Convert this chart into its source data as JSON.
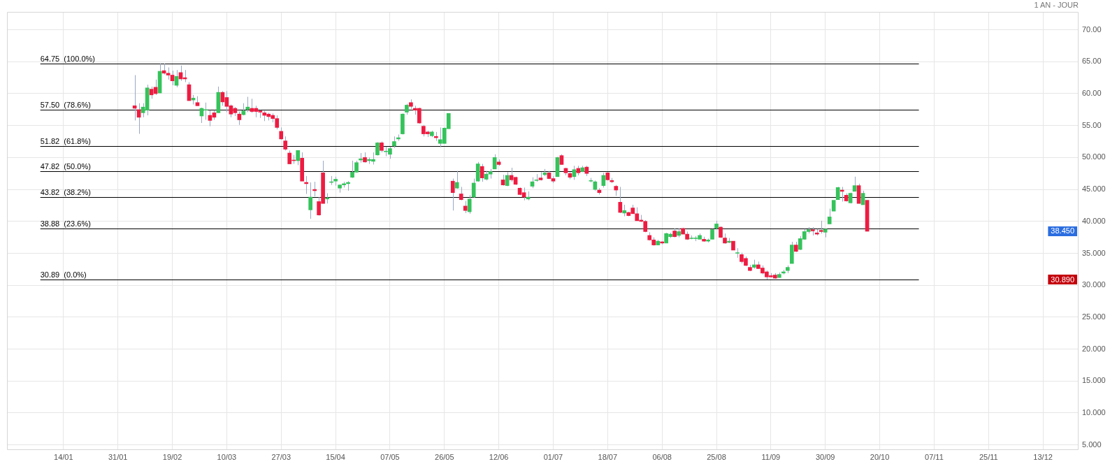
{
  "chart_data": {
    "type": "candlestick",
    "subtitle": "1 AN - JOUR",
    "categories": [
      null,
      null,
      null,
      null,
      null,
      null,
      null,
      null,
      null,
      null,
      null,
      null,
      null,
      "14/01",
      null,
      null,
      null,
      null,
      null,
      null,
      null,
      null,
      null,
      null,
      null,
      null,
      "31/01",
      null,
      null,
      null,
      null,
      null,
      null,
      null,
      null,
      null,
      null,
      null,
      null,
      "19/02",
      null,
      null,
      null,
      null,
      null,
      null,
      null,
      null,
      null,
      null,
      null,
      null,
      "10/03",
      null,
      null,
      null,
      null,
      null,
      null,
      null,
      null,
      null,
      null,
      null,
      null,
      "27/03",
      null,
      null,
      null,
      null,
      null,
      null,
      null,
      null,
      null,
      null,
      null,
      null,
      "15/04",
      null,
      null,
      null,
      null,
      null,
      null,
      null,
      null,
      null,
      null,
      null,
      null,
      "07/05",
      null,
      null,
      null,
      null,
      null,
      null,
      null,
      null,
      null,
      null,
      null,
      null,
      "26/05",
      null,
      null,
      null,
      null,
      null,
      null,
      null,
      null,
      null,
      null,
      null,
      null,
      "12/06",
      null,
      null,
      null,
      null,
      null,
      null,
      null,
      null,
      null,
      null,
      null,
      null,
      "01/07",
      null,
      null,
      null,
      null,
      null,
      null,
      null,
      null,
      null,
      null,
      null,
      null,
      "18/07",
      null,
      null,
      null,
      null,
      null,
      null,
      null,
      null,
      null,
      null,
      null,
      null,
      "06/08",
      null,
      null,
      null,
      null,
      null,
      null,
      null,
      null,
      null,
      null,
      null,
      null,
      "25/08",
      null,
      null,
      null,
      null,
      null,
      null,
      null,
      null,
      null,
      null,
      null,
      null,
      "11/09",
      null,
      null,
      null,
      null,
      null,
      null,
      null,
      null,
      null,
      null,
      null,
      null,
      "30/09",
      null,
      null,
      null,
      null,
      null,
      null,
      null,
      null,
      null,
      null,
      null,
      null,
      "20/10",
      null,
      null,
      null,
      null,
      null,
      null,
      null,
      null,
      null,
      null,
      null,
      null,
      "07/11",
      null,
      null,
      null,
      null,
      null,
      null,
      null,
      null,
      null,
      null,
      null,
      null,
      "25/11",
      null,
      null,
      null,
      null,
      null,
      null,
      null,
      null,
      null,
      null,
      null,
      null,
      "13/12",
      null,
      null,
      null,
      null,
      null,
      null,
      null,
      null
    ],
    "ohlc": [
      null,
      null,
      null,
      null,
      null,
      null,
      null,
      null,
      null,
      null,
      null,
      null,
      null,
      null,
      null,
      null,
      null,
      null,
      null,
      null,
      null,
      null,
      null,
      null,
      null,
      null,
      null,
      null,
      null,
      null,
      [
        58.1,
        62.9,
        55.8,
        57.7
      ],
      [
        57.5,
        58.5,
        53.7,
        56.3
      ],
      [
        57.0,
        58.5,
        56.3,
        57.9
      ],
      [
        57.4,
        61.4,
        56.6,
        60.9
      ],
      [
        60.7,
        61.1,
        59.2,
        59.8
      ],
      [
        61.0,
        62.2,
        59.8,
        60.0
      ],
      [
        60.1,
        64.75,
        60.1,
        63.5
      ],
      [
        63.6,
        64.7,
        63.0,
        63.2
      ],
      [
        63.2,
        64.1,
        62.2,
        62.9
      ],
      [
        62.9,
        63.6,
        61.3,
        62.0
      ],
      [
        61.3,
        63.7,
        61.0,
        62.7
      ],
      [
        63.3,
        64.4,
        62.0,
        62.3
      ],
      [
        62.5,
        63.7,
        61.8,
        62.3
      ],
      [
        61.4,
        61.8,
        58.9,
        58.9
      ],
      [
        59.0,
        59.8,
        58.3,
        59.3
      ],
      [
        58.6,
        59.6,
        58.1,
        58.1
      ],
      [
        56.5,
        57.8,
        55.4,
        57.7
      ],
      [
        57.4,
        58.6,
        55.9,
        57.5
      ],
      [
        56.6,
        57.4,
        54.9,
        55.8
      ],
      [
        57.0,
        57.4,
        55.9,
        56.3
      ],
      [
        57.0,
        61.1,
        57.0,
        60.2
      ],
      [
        60.2,
        60.4,
        58.1,
        58.7
      ],
      [
        59.4,
        60.4,
        57.1,
        58.0
      ],
      [
        58.1,
        58.3,
        56.3,
        56.8
      ],
      [
        57.7,
        57.9,
        56.5,
        57.0
      ],
      [
        56.8,
        57.2,
        55.1,
        55.9
      ],
      [
        56.7,
        58.5,
        56.6,
        57.3
      ],
      [
        57.5,
        59.5,
        57.1,
        57.9
      ],
      [
        57.7,
        59.2,
        57.0,
        57.2
      ],
      [
        57.7,
        58.1,
        56.3,
        57.2
      ],
      [
        57.3,
        57.4,
        56.2,
        57.1
      ],
      [
        57.0,
        57.3,
        55.7,
        56.6
      ],
      [
        56.8,
        57.0,
        55.8,
        56.4
      ],
      [
        56.6,
        56.9,
        55.5,
        56.1
      ],
      [
        56.1,
        56.6,
        54.4,
        54.7
      ],
      [
        54.1,
        54.7,
        52.8,
        52.9
      ],
      [
        52.6,
        53.3,
        51.1,
        51.3
      ],
      [
        50.7,
        51.1,
        49.0,
        49.0
      ],
      [
        49.6,
        50.4,
        49.0,
        49.5
      ],
      [
        49.5,
        51.1,
        48.8,
        51.1
      ],
      [
        49.9,
        50.8,
        46.3,
        46.3
      ],
      [
        46.1,
        47.1,
        44.3,
        45.9
      ],
      [
        41.8,
        46.1,
        40.4,
        43.8
      ],
      [
        45.0,
        46.2,
        43.9,
        44.8
      ],
      [
        43.1,
        43.8,
        40.9,
        41.0
      ],
      [
        47.6,
        49.5,
        42.8,
        42.8
      ],
      [
        43.5,
        44.4,
        42.8,
        43.7
      ],
      [
        46.1,
        47.1,
        45.7,
        46.2
      ],
      [
        46.3,
        47.0,
        45.6,
        46.6
      ],
      [
        45.2,
        45.8,
        44.5,
        45.7
      ],
      [
        45.7,
        46.2,
        45.3,
        45.9
      ],
      [
        45.9,
        46.3,
        44.8,
        46.1
      ],
      [
        46.9,
        49.5,
        46.8,
        47.7
      ],
      [
        47.7,
        49.5,
        47.6,
        49.2
      ],
      [
        49.6,
        50.7,
        49.2,
        49.8
      ],
      [
        50.0,
        50.8,
        49.2,
        49.3
      ],
      [
        49.5,
        50.0,
        49.0,
        49.7
      ],
      [
        49.4,
        50.8,
        48.9,
        49.7
      ],
      [
        50.4,
        52.4,
        50.3,
        52.3
      ],
      [
        52.3,
        52.5,
        50.8,
        51.1
      ],
      [
        50.9,
        51.7,
        50.2,
        51.0
      ],
      [
        50.5,
        51.7,
        49.8,
        51.4
      ],
      [
        51.8,
        53.3,
        51.5,
        52.5
      ],
      [
        52.9,
        53.6,
        52.6,
        53.1
      ],
      [
        53.7,
        56.9,
        53.6,
        56.8
      ],
      [
        57.1,
        58.4,
        56.7,
        58.2
      ],
      [
        58.6,
        59.1,
        57.6,
        58.0
      ],
      [
        57.7,
        58.1,
        56.7,
        57.4
      ],
      [
        57.7,
        57.8,
        55.3,
        55.4
      ],
      [
        54.9,
        55.1,
        53.3,
        53.7
      ],
      [
        54.0,
        54.2,
        53.2,
        53.7
      ],
      [
        53.4,
        54.2,
        53.2,
        54.0
      ],
      [
        53.3,
        54.0,
        52.6,
        53.1
      ],
      [
        52.2,
        54.7,
        51.6,
        52.8
      ],
      [
        52.2,
        54.7,
        52.2,
        54.6
      ],
      [
        54.5,
        56.9,
        54.5,
        56.9
      ],
      [
        46.3,
        46.7,
        41.7,
        44.5
      ],
      [
        45.2,
        47.9,
        45.1,
        46.1
      ],
      [
        44.3,
        45.4,
        43.3,
        43.4
      ],
      [
        42.4,
        43.2,
        41.3,
        41.7
      ],
      [
        41.5,
        44.1,
        41.2,
        43.5
      ],
      [
        43.8,
        46.7,
        43.7,
        46.0
      ],
      [
        46.3,
        49.3,
        46.2,
        49.0
      ],
      [
        48.6,
        49.0,
        46.2,
        46.8
      ],
      [
        46.6,
        47.9,
        46.4,
        47.4
      ],
      [
        47.4,
        48.2,
        46.7,
        47.8
      ],
      [
        48.2,
        50.5,
        48.2,
        50.0
      ],
      [
        49.3,
        49.7,
        48.7,
        48.9
      ],
      [
        46.5,
        47.3,
        45.6,
        45.7
      ],
      [
        45.6,
        47.7,
        45.5,
        47.2
      ],
      [
        47.2,
        48.4,
        46.2,
        46.5
      ],
      [
        46.9,
        47.0,
        45.7,
        45.8
      ],
      [
        45.2,
        45.3,
        44.1,
        44.2
      ],
      [
        44.5,
        45.3,
        43.3,
        43.8
      ],
      [
        43.5,
        44.7,
        43.3,
        43.8
      ],
      [
        45.5,
        46.9,
        45.2,
        46.2
      ],
      [
        46.4,
        47.4,
        46.2,
        46.5
      ],
      [
        46.8,
        47.7,
        46.4,
        46.5
      ],
      [
        47.3,
        48.2,
        47.1,
        47.6
      ],
      [
        47.6,
        47.9,
        46.6,
        46.7
      ],
      [
        46.7,
        47.1,
        46.0,
        46.3
      ],
      [
        47.0,
        50.1,
        47.0,
        50.0
      ],
      [
        50.3,
        50.5,
        48.9,
        48.9
      ],
      [
        48.3,
        48.4,
        47.2,
        47.6
      ],
      [
        47.5,
        47.7,
        46.6,
        46.9
      ],
      [
        47.0,
        48.7,
        46.5,
        48.1
      ],
      [
        48.3,
        48.7,
        47.2,
        47.6
      ],
      [
        47.8,
        48.7,
        47.7,
        48.4
      ],
      [
        48.5,
        48.7,
        47.1,
        47.5
      ],
      [
        46.3,
        46.8,
        46.1,
        46.4
      ],
      [
        45.0,
        46.4,
        44.8,
        46.2
      ],
      [
        44.9,
        45.2,
        44.2,
        44.5
      ],
      [
        45.6,
        47.6,
        45.3,
        47.2
      ],
      [
        47.6,
        47.7,
        46.4,
        46.5
      ],
      [
        46.4,
        46.8,
        46.0,
        46.2
      ],
      [
        45.5,
        45.7,
        44.0,
        44.9
      ],
      [
        43.0,
        45.4,
        41.3,
        41.4
      ],
      [
        41.3,
        42.6,
        40.8,
        41.7
      ],
      [
        41.4,
        41.5,
        40.8,
        40.9
      ],
      [
        42.1,
        42.6,
        41.2,
        41.2
      ],
      [
        41.2,
        42.2,
        40.1,
        40.1
      ],
      [
        40.2,
        41.0,
        39.9,
        40.0
      ],
      [
        40.0,
        40.2,
        38.3,
        38.4
      ],
      [
        37.8,
        38.3,
        37.0,
        37.1
      ],
      [
        37.1,
        37.5,
        36.2,
        36.3
      ],
      [
        36.3,
        37.1,
        36.3,
        36.9
      ],
      [
        36.8,
        36.9,
        36.4,
        36.6
      ],
      [
        36.6,
        38.2,
        36.6,
        38.1
      ],
      [
        37.6,
        38.2,
        37.4,
        38.0
      ],
      [
        38.5,
        38.9,
        37.5,
        37.6
      ],
      [
        37.8,
        38.9,
        37.5,
        38.4
      ],
      [
        38.9,
        39.0,
        38.0,
        38.0
      ],
      [
        38.0,
        38.4,
        37.1,
        37.2
      ],
      [
        37.3,
        37.8,
        37.2,
        37.4
      ],
      [
        37.3,
        37.7,
        36.9,
        37.4
      ],
      [
        37.2,
        38.1,
        37.2,
        37.8
      ],
      [
        37.2,
        37.6,
        36.8,
        36.9
      ],
      [
        36.9,
        37.3,
        36.7,
        37.1
      ],
      [
        37.2,
        38.8,
        37.2,
        38.7
      ],
      [
        38.9,
        40.1,
        38.7,
        39.6
      ],
      [
        39.1,
        39.2,
        37.4,
        37.5
      ],
      [
        37.4,
        38.1,
        36.5,
        36.6
      ],
      [
        36.7,
        37.4,
        36.6,
        36.9
      ],
      [
        36.9,
        36.9,
        35.5,
        35.5
      ],
      [
        35.0,
        35.8,
        34.3,
        35.1
      ],
      [
        34.8,
        35.1,
        33.4,
        33.7
      ],
      [
        34.2,
        34.5,
        33.0,
        33.1
      ],
      [
        32.8,
        33.2,
        32.2,
        32.3
      ],
      [
        32.8,
        34.0,
        32.6,
        33.2
      ],
      [
        33.2,
        33.7,
        32.6,
        32.6
      ],
      [
        32.7,
        33.1,
        31.7,
        31.9
      ],
      [
        32.1,
        32.3,
        30.89,
        31.3
      ],
      [
        31.5,
        31.9,
        31.2,
        31.3
      ],
      [
        31.6,
        31.9,
        31.0,
        31.1
      ],
      [
        31.2,
        32.0,
        31.2,
        31.7
      ],
      [
        31.9,
        32.4,
        31.7,
        32.1
      ],
      [
        32.3,
        33.1,
        31.9,
        32.8
      ],
      [
        33.4,
        36.8,
        33.4,
        36.3
      ],
      [
        36.3,
        36.8,
        35.2,
        35.3
      ],
      [
        35.6,
        37.7,
        35.5,
        37.3
      ],
      [
        37.2,
        38.8,
        37.1,
        38.4
      ],
      [
        38.4,
        39.1,
        38.1,
        38.7
      ],
      [
        38.7,
        39.1,
        37.8,
        38.5
      ],
      [
        38.2,
        38.8,
        37.8,
        38.0
      ],
      [
        38.6,
        40.1,
        38.1,
        38.4
      ],
      [
        38.3,
        38.9,
        37.5,
        38.8
      ],
      [
        39.6,
        42.0,
        39.6,
        40.7
      ],
      [
        41.6,
        43.3,
        41.6,
        43.3
      ],
      [
        43.4,
        45.4,
        43.4,
        45.3
      ],
      [
        44.9,
        45.4,
        43.1,
        44.7
      ],
      [
        44.1,
        44.4,
        43.1,
        43.2
      ],
      [
        42.9,
        44.5,
        42.8,
        44.4
      ],
      [
        44.7,
        47.0,
        44.7,
        45.6
      ],
      [
        45.6,
        45.9,
        42.8,
        42.8
      ],
      [
        42.6,
        44.8,
        42.6,
        44.4
      ],
      [
        43.3,
        43.3,
        38.45,
        38.45
      ],
      null,
      null,
      null,
      null,
      null,
      null,
      null,
      null,
      null,
      null,
      null,
      null,
      null,
      null,
      null,
      null,
      null,
      null,
      null,
      null,
      null,
      null,
      null,
      null,
      null,
      null,
      null,
      null,
      null,
      null,
      null,
      null,
      null,
      null,
      null,
      null,
      null,
      null,
      null,
      null,
      null,
      null,
      null,
      null,
      null,
      null,
      null,
      null,
      null,
      null
    ],
    "colors": [
      null,
      null,
      null,
      null,
      null,
      null,
      null,
      null,
      null,
      null,
      null,
      null,
      null,
      null,
      null,
      null,
      null,
      null,
      null,
      null,
      null,
      null,
      null,
      null,
      null,
      null,
      null,
      null,
      null,
      null,
      "#ef1b41",
      "#ef1b41",
      "#35c35b",
      "#35c35b",
      "#ef1b41",
      "#ef1b41",
      "#35c35b",
      "#ef1b41",
      "#ef1b41",
      "#ef1b41",
      "#35c35b",
      "#ef1b41",
      "#ef1b41",
      "#ef1b41",
      "#35c35b",
      "#ef1b41",
      "#35c35b",
      "#35c35b",
      "#ef1b41",
      "#ef1b41",
      "#35c35b",
      "#ef1b41",
      "#ef1b41",
      "#ef1b41",
      "#ef1b41",
      "#ef1b41",
      "#35c35b",
      "#35c35b",
      "#ef1b41",
      "#ef1b41",
      "#ef1b41",
      "#ef1b41",
      "#ef1b41",
      "#ef1b41",
      "#ef1b41",
      "#ef1b41",
      "#ef1b41",
      "#ef1b41",
      "#ef1b41",
      "#35c35b",
      "#ef1b41",
      "#ef1b41",
      "#35c35b",
      "#ef1b41",
      "#ef1b41",
      "#ef1b41",
      "#35c35b",
      "#35c35b",
      "#35c35b",
      "#35c35b",
      "#35c35b",
      "#35c35b",
      "#35c35b",
      "#35c35b",
      "#35c35b",
      "#ef1b41",
      "#35c35b",
      "#35c35b",
      "#35c35b",
      "#ef1b41",
      "#35c35b",
      "#35c35b",
      "#35c35b",
      "#35c35b",
      "#35c35b",
      "#35c35b",
      "#ef1b41",
      "#ef1b41",
      "#ef1b41",
      "#ef1b41",
      "#ef1b41",
      "#35c35b",
      "#ef1b41",
      "#35c35b",
      "#35c35b",
      "#35c35b",
      "#ef1b41",
      "#35c35b",
      "#ef1b41",
      "#ef1b41",
      "#35c35b",
      "#35c35b",
      "#35c35b",
      "#ef1b41",
      "#35c35b",
      "#35c35b",
      "#35c35b",
      "#ef1b41",
      "#ef1b41",
      "#35c35b",
      "#ef1b41",
      "#ef1b41",
      "#ef1b41",
      "#ef1b41",
      "#35c35b",
      "#35c35b",
      "#35c35b",
      "#ef1b41",
      "#35c35b",
      "#ef1b41",
      "#ef1b41",
      "#35c35b",
      "#ef1b41",
      "#ef1b41",
      "#ef1b41",
      "#35c35b",
      "#ef1b41",
      "#35c35b",
      "#ef1b41",
      "#35c35b",
      "#35c35b",
      "#ef1b41",
      "#35c35b",
      "#ef1b41",
      "#ef1b41",
      "#ef1b41",
      "#ef1b41",
      "#35c35b",
      "#ef1b41",
      "#ef1b41",
      "#ef1b41",
      "#ef1b41",
      "#ef1b41",
      "#ef1b41",
      "#ef1b41",
      "#35c35b",
      "#ef1b41",
      "#35c35b",
      "#35c35b",
      "#ef1b41",
      "#35c35b",
      "#ef1b41",
      "#ef1b41",
      "#35c35b",
      "#35c35b",
      "#35c35b",
      "#ef1b41",
      "#35c35b",
      "#35c35b",
      "#35c35b",
      "#ef1b41",
      "#ef1b41",
      "#35c35b",
      "#ef1b41",
      "#35c35b",
      "#ef1b41",
      "#ef1b41",
      "#ef1b41",
      "#35c35b",
      "#ef1b41",
      "#ef1b41",
      "#ef1b41",
      "#ef1b41",
      "#ef1b41",
      "#35c35b",
      "#35c35b",
      "#35c35b",
      "#35c35b",
      "#ef1b41",
      "#35c35b",
      "#35c35b",
      "#35c35b",
      "#ef1b41",
      "#ef1b41",
      "#ef1b41",
      "#35c35b",
      "#35c35b",
      "#35c35b",
      "#35c35b",
      "#ef1b41",
      "#ef1b41",
      "#35c35b",
      "#35c35b",
      "#ef1b41",
      "#35c35b",
      "#ef1b41",
      null,
      null,
      null,
      null,
      null,
      null,
      null,
      null,
      null,
      null,
      null,
      null,
      null,
      null,
      null,
      null,
      null,
      null,
      null,
      null,
      null,
      null,
      null,
      null,
      null,
      null,
      null,
      null,
      null,
      null,
      null,
      null,
      null,
      null,
      null,
      null,
      null,
      null,
      null,
      null,
      null,
      null,
      null,
      null,
      null,
      null,
      null,
      null,
      null,
      null
    ],
    "ylim": [
      4.2,
      72.8
    ],
    "yticks": [
      {
        "value": 70,
        "label": "70.00"
      },
      {
        "value": 65,
        "label": "65.00"
      },
      {
        "value": 60,
        "label": "60.00"
      },
      {
        "value": 55,
        "label": "55.00"
      },
      {
        "value": 50,
        "label": "50.000"
      },
      {
        "value": 45,
        "label": "45.000"
      },
      {
        "value": 40,
        "label": "40.000"
      },
      {
        "value": 35,
        "label": "35.000"
      },
      {
        "value": 30,
        "label": "30.000"
      },
      {
        "value": 25,
        "label": "25.000"
      },
      {
        "value": 20,
        "label": "20.000"
      },
      {
        "value": 15,
        "label": "15.000"
      },
      {
        "value": 10,
        "label": "10.000"
      },
      {
        "value": 5,
        "label": "5.000"
      }
    ],
    "grid": true,
    "ref_lines": [
      {
        "axis": "y",
        "value": 64.75,
        "label": "64.75  (100.0%)",
        "color": "#000000"
      },
      {
        "axis": "y",
        "value": 57.5,
        "label": "57.50  (78.6%)",
        "color": "#000000"
      },
      {
        "axis": "y",
        "value": 51.82,
        "label": "51.82  (61.8%)",
        "color": "#000000"
      },
      {
        "axis": "y",
        "value": 47.82,
        "label": "47.82  (50.0%)",
        "color": "#000000"
      },
      {
        "axis": "y",
        "value": 43.82,
        "label": "43.82  (38.2%)",
        "color": "#000000"
      },
      {
        "axis": "y",
        "value": 38.88,
        "label": "38.88  (23.6%)",
        "color": "#000000"
      },
      {
        "axis": "y",
        "value": 30.89,
        "label": "30.89  (0.0%)",
        "color": "#000000"
      }
    ],
    "annotations": [
      {
        "text": "38.450",
        "y": 38.45
      },
      {
        "text": "30.890",
        "y": 30.89
      }
    ]
  }
}
